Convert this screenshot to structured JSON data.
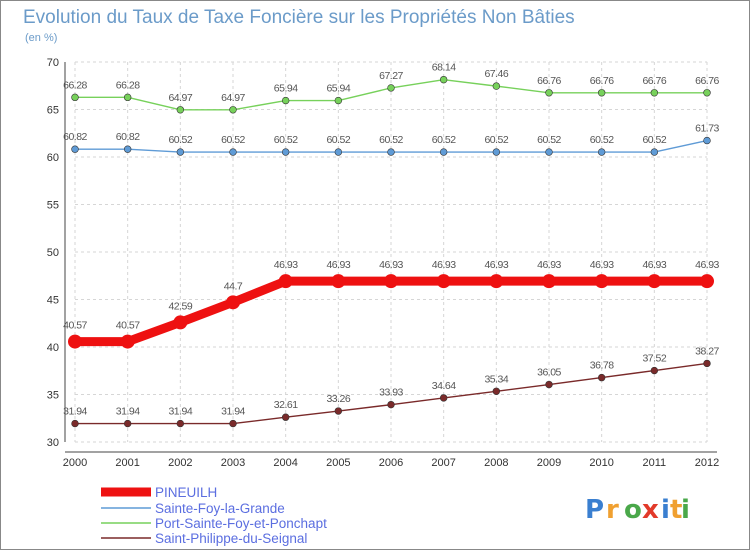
{
  "chart_data": {
    "type": "line",
    "title": "Evolution du Taux de Taxe Foncière sur les Propriétés Non Bâties",
    "subtitle": "(en %)",
    "xlabel": "",
    "ylabel": "",
    "ylim": [
      30,
      70
    ],
    "yticks": [
      30,
      35,
      40,
      45,
      50,
      55,
      60,
      65,
      70
    ],
    "categories": [
      "2000",
      "2001",
      "2002",
      "2003",
      "2004",
      "2005",
      "2006",
      "2007",
      "2008",
      "2009",
      "2010",
      "2011",
      "2012"
    ],
    "grid": true,
    "legend_position": "bottom-left",
    "series": [
      {
        "name": "Port-Sainte-Foy-et-Ponchapt",
        "color": "#77d15b",
        "values": [
          66.28,
          66.28,
          64.97,
          64.97,
          65.94,
          65.94,
          67.27,
          68.14,
          67.46,
          66.76,
          66.76,
          66.76,
          66.76
        ],
        "labels": [
          "66.28",
          "66.28",
          "64.97",
          "64.97",
          "65.94",
          "65.94",
          "67.27",
          "68.14",
          "67.46",
          "66.76",
          "66.76",
          "66.76",
          "66.76"
        ]
      },
      {
        "name": "Sainte-Foy-la-Grande",
        "color": "#5f9bd6",
        "values": [
          60.82,
          60.82,
          60.52,
          60.52,
          60.52,
          60.52,
          60.52,
          60.52,
          60.52,
          60.52,
          60.52,
          60.52,
          61.73
        ],
        "labels": [
          "60.82",
          "60.82",
          "60.52",
          "60.52",
          "60.52",
          "60.52",
          "60.52",
          "60.52",
          "60.52",
          "60.52",
          "60.52",
          "60.52",
          "61.73"
        ]
      },
      {
        "name": "PINEUILH",
        "color": "#ee1111",
        "values": [
          40.57,
          40.57,
          42.59,
          44.7,
          46.93,
          46.93,
          46.93,
          46.93,
          46.93,
          46.93,
          46.93,
          46.93,
          46.93
        ],
        "labels": [
          "40.57",
          "40.57",
          "42.59",
          "44.7",
          "46.93",
          "46.93",
          "46.93",
          "46.93",
          "46.93",
          "46.93",
          "46.93",
          "46.93",
          "46.93"
        ]
      },
      {
        "name": "Saint-Philippe-du-Seignal",
        "color": "#7a2a2a",
        "values": [
          31.94,
          31.94,
          31.94,
          31.94,
          32.61,
          33.26,
          33.93,
          34.64,
          35.34,
          36.05,
          36.78,
          37.52,
          38.27
        ],
        "labels": [
          "31.94",
          "31.94",
          "31.94",
          "31.94",
          "32.61",
          "33.26",
          "33.93",
          "34.64",
          "35.34",
          "36.05",
          "36.78",
          "37.52",
          "38.27"
        ]
      }
    ],
    "legend": [
      "PINEUILH",
      "Sainte-Foy-la-Grande",
      "Port-Sainte-Foy-et-Ponchapt",
      "Saint-Philippe-du-Seignal"
    ]
  },
  "logo": {
    "letters": [
      "P",
      "r",
      "o",
      "x",
      "i",
      "t",
      "i"
    ],
    "colors": [
      "#3a7fd0",
      "#f0a030",
      "#4aa84a",
      "#e23a2a",
      "#3a7fd0",
      "#f0a030",
      "#4aa84a"
    ]
  }
}
